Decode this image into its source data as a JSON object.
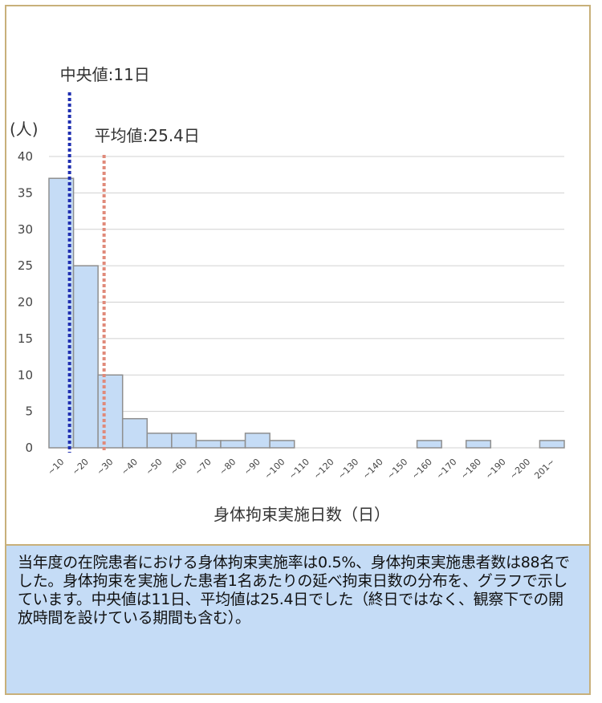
{
  "chart_data": {
    "type": "bar",
    "categories": [
      "~10",
      "~20",
      "~30",
      "~40",
      "~50",
      "~60",
      "~70",
      "~80",
      "~90",
      "~100",
      "~110",
      "~120",
      "~130",
      "~140",
      "~150",
      "~160",
      "~170",
      "~180",
      "~190",
      "~200",
      "201~"
    ],
    "values": [
      37,
      25,
      10,
      4,
      2,
      2,
      1,
      1,
      2,
      1,
      0,
      0,
      0,
      0,
      0,
      1,
      0,
      1,
      0,
      0,
      1
    ],
    "ylabel": "(人)",
    "xlabel": "身体拘束実施日数（日）",
    "ylim": [
      0,
      40
    ],
    "yticks": [
      0,
      5,
      10,
      15,
      20,
      25,
      30,
      35,
      40
    ],
    "grid": true,
    "bar_color": "#c5dcf6",
    "bar_edge_color": "#8f8f8f",
    "annotations": [
      {
        "label": "中央値:11日",
        "x": 11,
        "color": "#1f2fb0"
      },
      {
        "label": "平均値:25.4日",
        "x": 25.4,
        "color": "#e08a7a"
      }
    ]
  },
  "description": "当年度の在院患者における身体拘束実施率は0.5%、身体拘束実施患者数は88名でした。身体拘束を実施した患者1名あたりの延べ拘束日数の分布を、グラフで示しています。中央値は11日、平均値は25.4日でした（終日ではなく、観察下での開放時間を設けている期間も含む）。"
}
